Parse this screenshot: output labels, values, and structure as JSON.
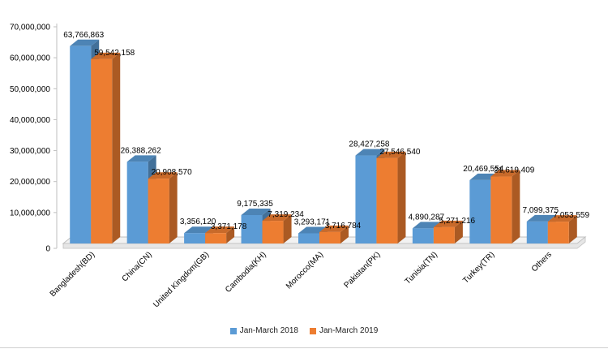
{
  "chart_data": {
    "type": "bar",
    "title": "",
    "xlabel": "",
    "ylabel": "",
    "ylim": [
      0,
      70000000
    ],
    "yticks": [
      "0",
      "10,000,000",
      "20,000,000",
      "30,000,000",
      "40,000,000",
      "50,000,000",
      "60,000,000",
      "70,000,000"
    ],
    "ytick_values": [
      0,
      10000000,
      20000000,
      30000000,
      40000000,
      50000000,
      60000000,
      70000000
    ],
    "grid": false,
    "legend_position": "bottom",
    "categories": [
      "Bangladesh(BD)",
      "China(CN)",
      "United Kingdom(GB)",
      "Cambodia(KH)",
      "Morocco(MA)",
      "Pakistan(PK)",
      "Tunisia(TN)",
      "Turkey(TR)",
      "Others"
    ],
    "series": [
      {
        "name": "Jan-March 2018",
        "color": "#5B9BD5",
        "values": [
          63766863,
          26388262,
          3356120,
          9175335,
          3293171,
          28427258,
          4890287,
          20469554,
          7099375
        ],
        "labels": [
          "63,766,863",
          "26,388,262",
          "3,356,120",
          "9,175,335",
          "3,293,171",
          "28,427,258",
          "4,890,287",
          "20,469,554",
          "7,099,375"
        ]
      },
      {
        "name": "Jan-March 2019",
        "color": "#ED7D31",
        "values": [
          59542158,
          20908570,
          3371178,
          7319234,
          3716784,
          27546540,
          5271216,
          21619409,
          7053559
        ],
        "labels": [
          "59,542,158",
          "20,908,570",
          "3,371,178",
          "7,319,234",
          "3,716,784",
          "27,546,540",
          "5,271,216",
          "21,619,409",
          "7,053,559"
        ]
      }
    ]
  }
}
